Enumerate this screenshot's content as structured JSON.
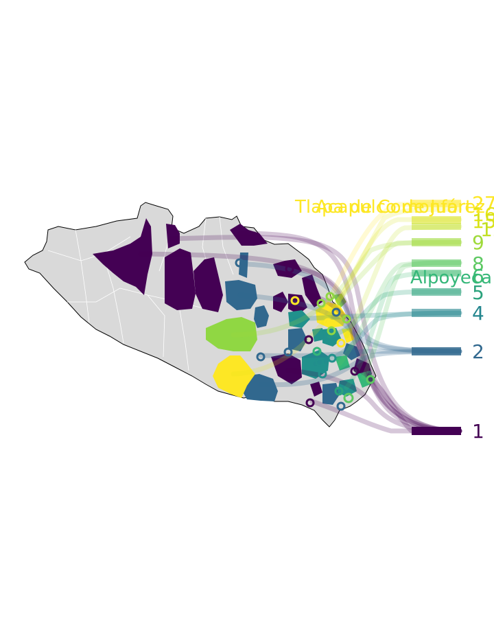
{
  "map": {
    "colors": {
      "base": "#d9d9d9",
      "border": "#ffffff",
      "outline": "#000000",
      "v1": "#440154",
      "v2": "#31688e",
      "v4": "#35b779",
      "v5": "#90d743",
      "v6": "#fde725",
      "mid": "#21918c"
    },
    "scale_labels": [
      {
        "text": "27",
        "color": "#fde725"
      },
      {
        "text": "16",
        "color": "#e4e51a"
      },
      {
        "text": "15",
        "color": "#d8e219"
      },
      {
        "text": "12",
        "color": "#c2df23"
      },
      {
        "text": "9",
        "color": "#9fda3a"
      },
      {
        "text": "8",
        "color": "#5ec962"
      },
      {
        "text": "6",
        "color": "#3fbc73"
      },
      {
        "text": "5",
        "color": "#2ba27c"
      },
      {
        "text": "4",
        "color": "#24868e"
      },
      {
        "text": "2",
        "color": "#31688e"
      },
      {
        "text": "1",
        "color": "#440154"
      }
    ],
    "place_labels": [
      {
        "text": "Tlapa de Comonfort",
        "color": "#fde725"
      },
      {
        "text": "Acapulco de Juárez",
        "color": "#fde725"
      },
      {
        "text": "Alpoyeca",
        "color": "#35b779"
      }
    ]
  }
}
